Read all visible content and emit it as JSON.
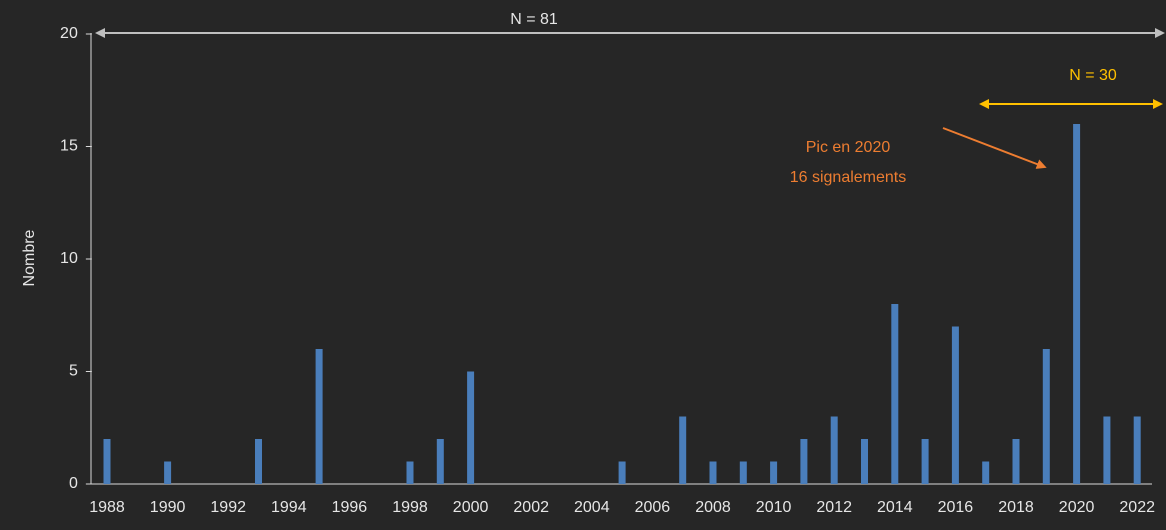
{
  "chart_data": {
    "type": "bar",
    "y_label": "Nombre",
    "categories": [
      "1988",
      null,
      "1990",
      null,
      "1992",
      null,
      "1994",
      null,
      "1996",
      null,
      "1998",
      null,
      "2000",
      null,
      "2002",
      null,
      "2004",
      null,
      "2006",
      null,
      "2008",
      null,
      "2010",
      null,
      "2012",
      null,
      "2014",
      null,
      "2016",
      null,
      "2018",
      null,
      "2020",
      null,
      "2022"
    ],
    "values": [
      2,
      0,
      1,
      0,
      0,
      2,
      0,
      6,
      0,
      0,
      1,
      2,
      5,
      0,
      0,
      0,
      0,
      1,
      0,
      3,
      1,
      1,
      1,
      2,
      3,
      2,
      8,
      2,
      7,
      1,
      2,
      6,
      16,
      3,
      3
    ],
    "color": "#4a7ebb",
    "ylim": [
      0,
      20
    ],
    "yticks": [
      0,
      5,
      10,
      15,
      20
    ],
    "annotations": [
      "N = 81",
      "N = 30",
      "Pic en 2020",
      "16 signalements"
    ]
  }
}
